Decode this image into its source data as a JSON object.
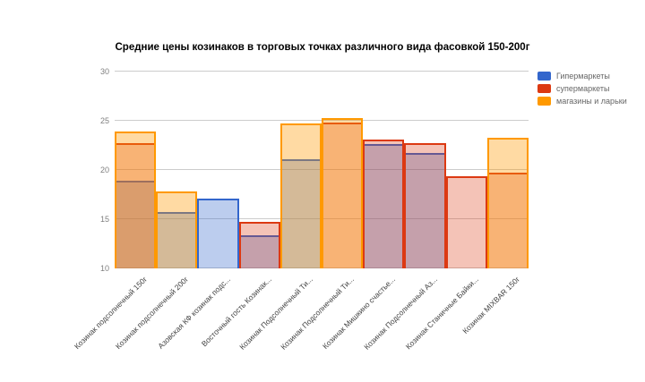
{
  "title": "Средние цены козинаков в торговых точках различного вида фасовкой 150-200г",
  "legend": {
    "items": [
      {
        "label": "Гипермаркеты",
        "color": "#3366CC"
      },
      {
        "label": "супермаркеты",
        "color": "#DC3912"
      },
      {
        "label": "магазины и ларьки",
        "color": "#FF9900"
      }
    ]
  },
  "chart_data": {
    "type": "bar",
    "subtype": "overlapping-translucent-bars",
    "title": "Средние цены козинаков в торговых точках различного вида фасовкой 150-200г",
    "xlabel": "",
    "ylabel": "",
    "ylim": [
      10,
      30
    ],
    "y_ticks": [
      "10",
      "15",
      "20",
      "25",
      "30"
    ],
    "grid": true,
    "legend_position": "top-right",
    "categories": [
      "Козинак подсолнечный 150г",
      "Козинак подсолнечный 200г",
      "Азовская КФ козинак подс...",
      "Восточный гость Козинак...",
      "Козинак Подсолнечный Ти...",
      "Козинак Подсолнечный Ти...",
      "Козинак Мишкино счастье...",
      "Козинак Подсолнечный Аз...",
      "Козинак Станичные Байки...",
      "Козинак MIXBAR 150г"
    ],
    "series": [
      {
        "name": "Гипермаркеты",
        "color": "#3366CC",
        "values": [
          18.9,
          15.7,
          17.1,
          13.4,
          21.1,
          null,
          22.6,
          21.7,
          null,
          null
        ]
      },
      {
        "name": "супермаркеты",
        "color": "#DC3912",
        "values": [
          22.7,
          null,
          null,
          14.7,
          null,
          24.8,
          23.1,
          22.7,
          19.4,
          19.7
        ]
      },
      {
        "name": "магазины и ларьки",
        "color": "#FF9900",
        "values": [
          23.9,
          17.8,
          null,
          null,
          24.7,
          25.3,
          null,
          null,
          null,
          23.3
        ]
      }
    ]
  }
}
